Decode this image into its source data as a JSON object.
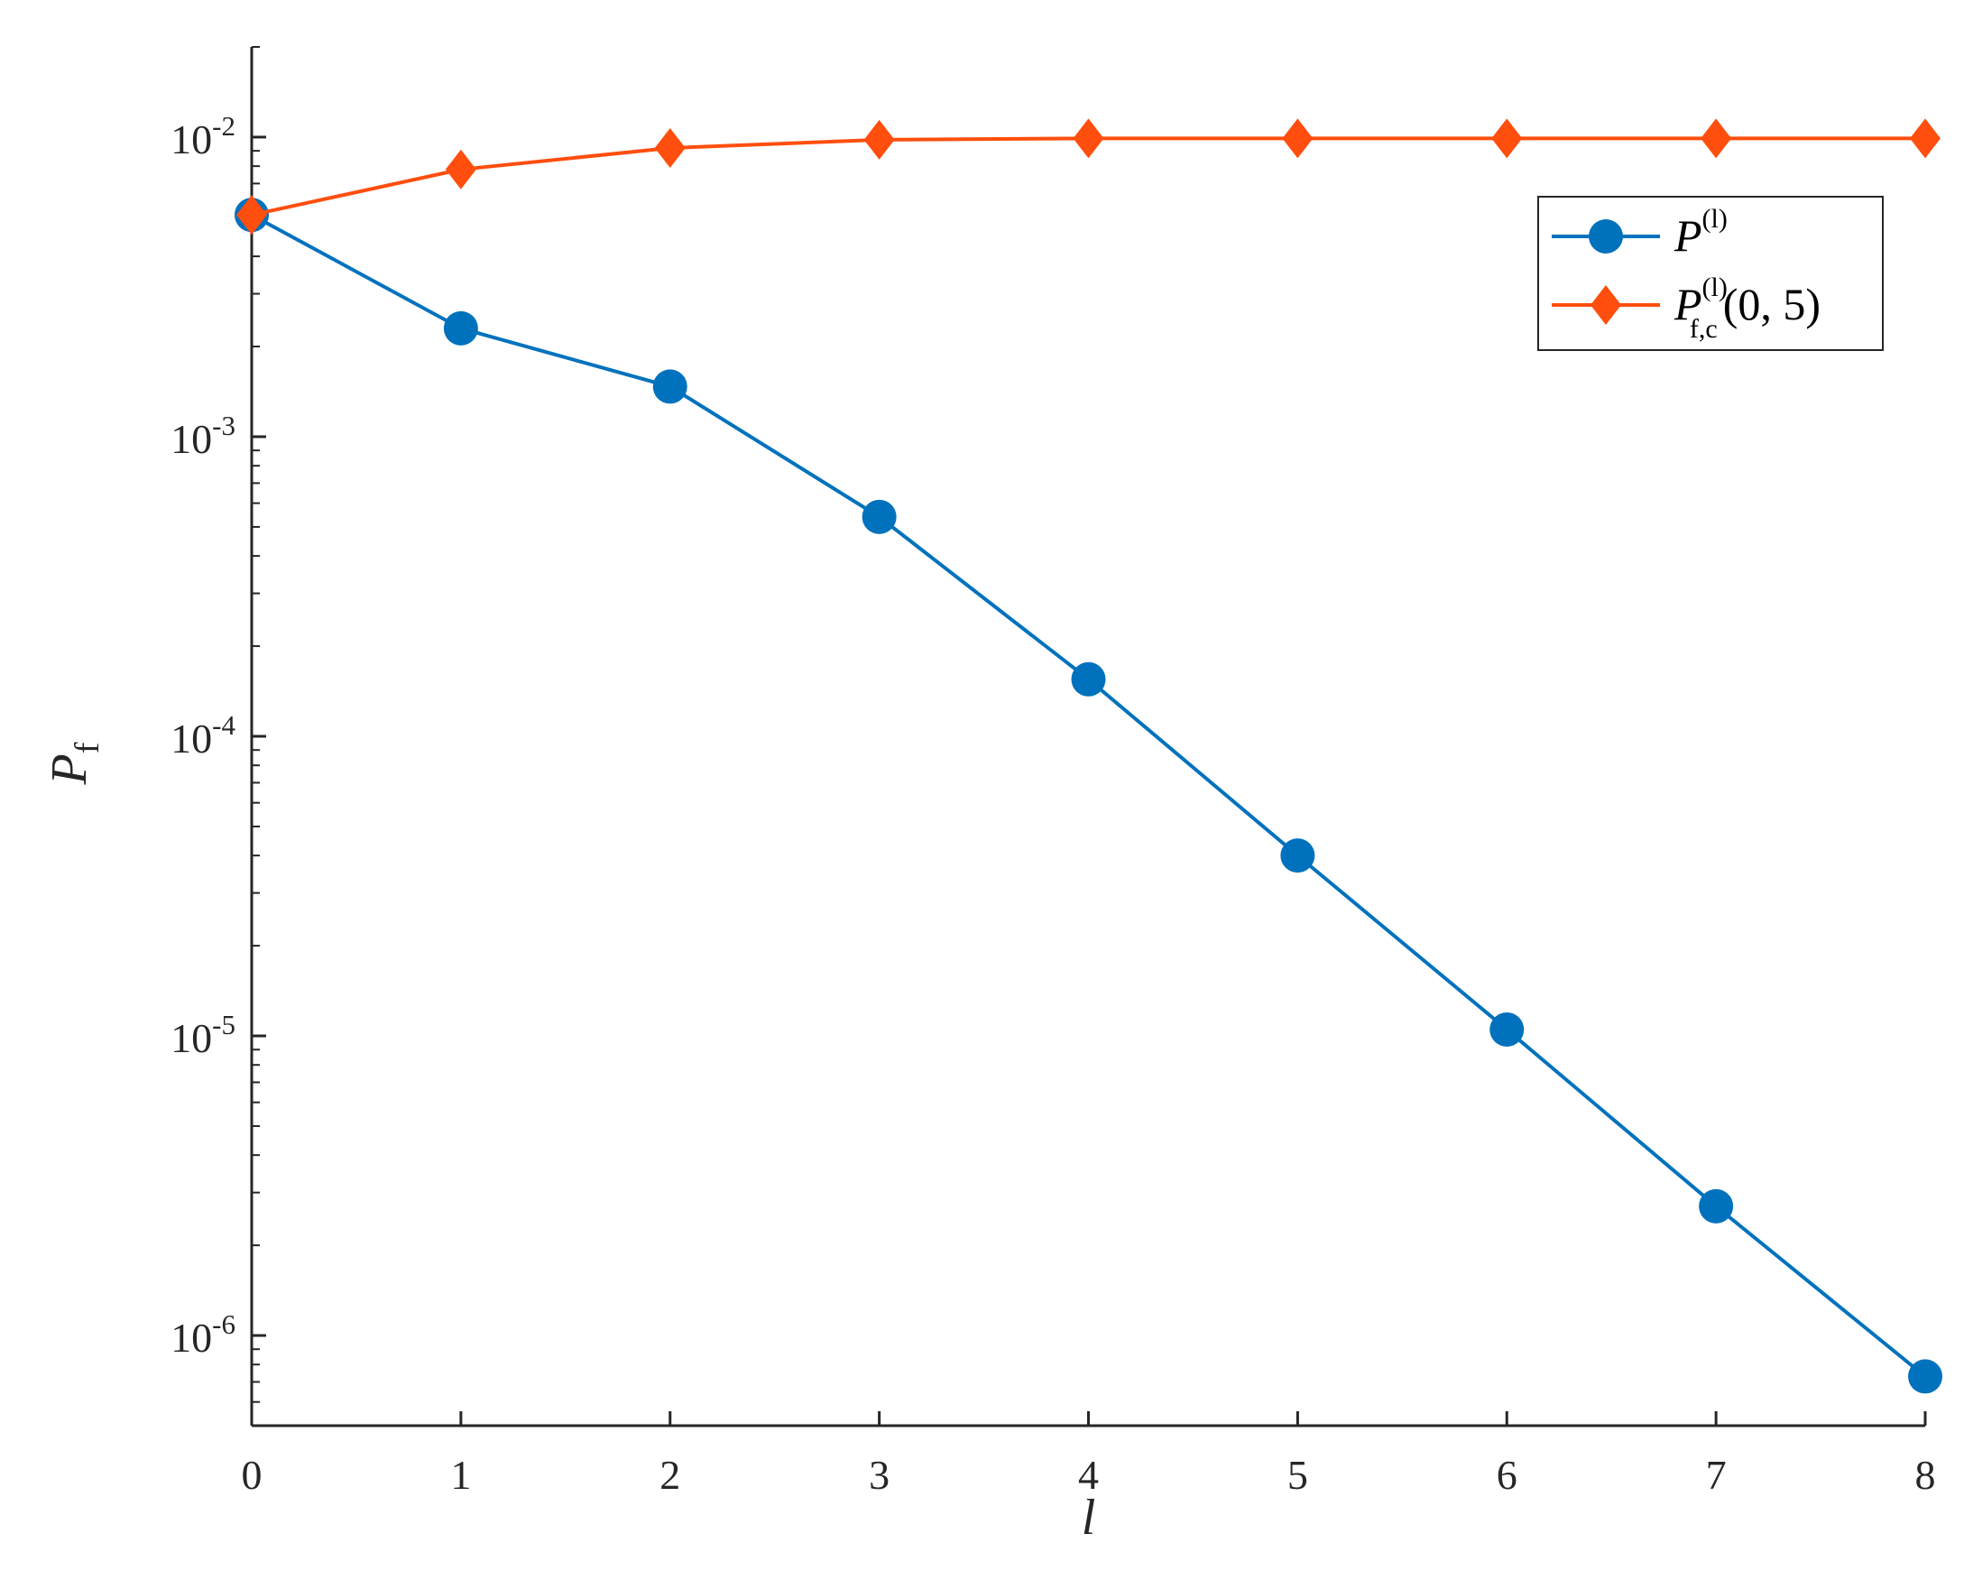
{
  "chart_data": {
    "type": "line",
    "x": [
      0,
      1,
      2,
      3,
      4,
      5,
      6,
      7,
      8
    ],
    "xlim": [
      0,
      8
    ],
    "xticks": [
      "0",
      "1",
      "2",
      "3",
      "4",
      "5",
      "6",
      "7",
      "8"
    ],
    "xlabel": "l",
    "ylabel": {
      "main": "P",
      "sub": "f"
    },
    "yscale": "log",
    "ylim": [
      5e-07,
      0.02
    ],
    "yticks": [
      {
        "value": 1e-06,
        "base": "10",
        "exp": "-6"
      },
      {
        "value": 1e-05,
        "base": "10",
        "exp": "-5"
      },
      {
        "value": 0.0001,
        "base": "10",
        "exp": "-4"
      },
      {
        "value": 0.001,
        "base": "10",
        "exp": "-3"
      },
      {
        "value": 0.01,
        "base": "10",
        "exp": "-2"
      }
    ],
    "grid": false,
    "legend_position": "top-right",
    "series": [
      {
        "legend": {
          "main": "P",
          "sup": "(l)",
          "sub": "",
          "args": ""
        },
        "color": "#0072BD",
        "marker": "circle",
        "values": [
          0.0055,
          0.0023,
          0.00147,
          0.00054,
          0.000155,
          4e-05,
          1.05e-05,
          2.7e-06,
          7.3e-07
        ]
      },
      {
        "legend": {
          "main": "P",
          "sup": "(l)",
          "sub": "f,c",
          "args": "(0, 5)"
        },
        "color": "#FF4E0D",
        "marker": "diamond",
        "values": [
          0.0055,
          0.0078,
          0.0092,
          0.0098,
          0.0099,
          0.0099,
          0.0099,
          0.0099,
          0.0099
        ]
      }
    ]
  }
}
